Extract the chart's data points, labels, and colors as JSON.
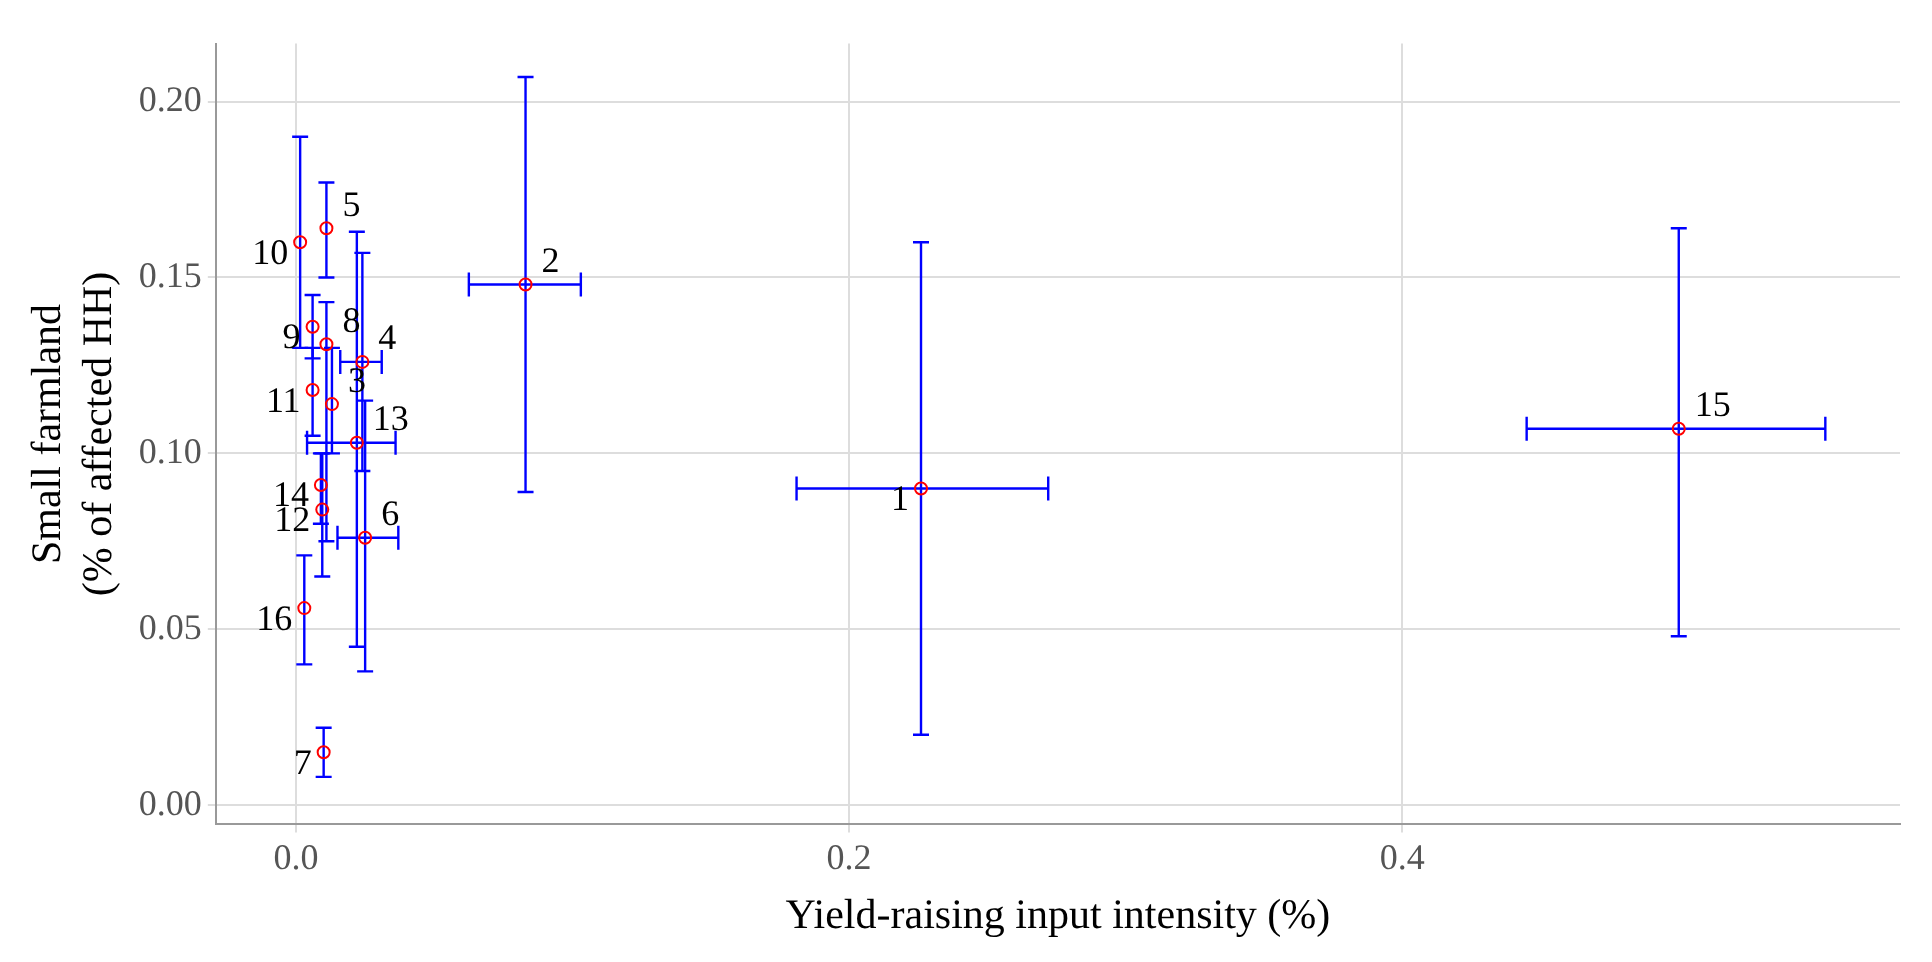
{
  "chart_data": {
    "type": "scatter",
    "xlabel": "Yield-raising input intensity (%)",
    "ylabel": "Small farmland\n(% of affected HH)",
    "x": [
      0.226,
      0.083,
      0.013,
      0.024,
      0.011,
      0.025,
      0.01,
      0.011,
      0.006,
      0.0015,
      0.006,
      0.0095,
      0.022,
      0.009,
      0.5,
      0.003
    ],
    "series": [
      {
        "color": "#ff0000",
        "values": [
          0.09,
          0.148,
          0.114,
          0.126,
          0.164,
          0.076,
          0.015,
          0.131,
          0.136,
          0.16,
          0.118,
          0.084,
          0.103,
          0.091,
          0.107,
          0.056
        ],
        "errors": [
          [
            0.02,
            0.16
          ],
          [
            0.089,
            0.207
          ],
          [
            0.1,
            0.13
          ],
          [
            0.095,
            0.157
          ],
          [
            0.15,
            0.177
          ],
          [
            0.038,
            0.115
          ],
          [
            0.008,
            0.022
          ],
          [
            0.075,
            0.143
          ],
          [
            0.127,
            0.145
          ],
          [
            0.13,
            0.19
          ],
          [
            0.105,
            0.13
          ],
          [
            0.065,
            0.1
          ],
          [
            0.045,
            0.163
          ],
          [
            0.08,
            0.1
          ],
          [
            0.048,
            0.164
          ],
          [
            0.04,
            0.071
          ]
        ],
        "xerrors": [
          [
            0.181,
            0.272
          ],
          [
            0.0625,
            0.103
          ],
          null,
          [
            0.016,
            0.031
          ],
          null,
          [
            0.015,
            0.037
          ],
          null,
          null,
          null,
          null,
          null,
          null,
          [
            0.004,
            0.036
          ],
          null,
          [
            0.445,
            0.553
          ],
          null
        ]
      }
    ],
    "annotations": [
      {
        "text": "1",
        "x": 0.226,
        "y": 0.09
      },
      {
        "text": "2",
        "x": 0.083,
        "y": 0.148
      },
      {
        "text": "3",
        "x": 0.013,
        "y": 0.114
      },
      {
        "text": "4",
        "x": 0.024,
        "y": 0.126
      },
      {
        "text": "5",
        "x": 0.011,
        "y": 0.164
      },
      {
        "text": "6",
        "x": 0.025,
        "y": 0.076
      },
      {
        "text": "7",
        "x": 0.01,
        "y": 0.015
      },
      {
        "text": "8",
        "x": 0.011,
        "y": 0.131
      },
      {
        "text": "9",
        "x": 0.006,
        "y": 0.136
      },
      {
        "text": "10",
        "x": 0.0015,
        "y": 0.16
      },
      {
        "text": "11",
        "x": 0.006,
        "y": 0.118
      },
      {
        "text": "12",
        "x": 0.0095,
        "y": 0.084
      },
      {
        "text": "13",
        "x": 0.022,
        "y": 0.103
      },
      {
        "text": "14",
        "x": 0.009,
        "y": 0.091
      },
      {
        "text": "15",
        "x": 0.5,
        "y": 0.107
      },
      {
        "text": "16",
        "x": 0.003,
        "y": 0.056
      }
    ],
    "xlim": [
      -0.029,
      0.58
    ],
    "ylim": [
      -0.0055,
      0.2165
    ],
    "xticks": [
      {
        "value": 0,
        "label": "0.0"
      },
      {
        "value": 0.2,
        "label": "0.2"
      },
      {
        "value": 0.4,
        "label": "0.4"
      }
    ],
    "yticks": [
      {
        "value": 0,
        "label": "0.00"
      },
      {
        "value": 0.05,
        "label": "0.05"
      },
      {
        "value": 0.1,
        "label": "0.10"
      },
      {
        "value": 0.15,
        "label": "0.15"
      },
      {
        "value": 0.2,
        "label": "0.20"
      }
    ],
    "grid": true,
    "legend": false,
    "marker": "circle"
  }
}
